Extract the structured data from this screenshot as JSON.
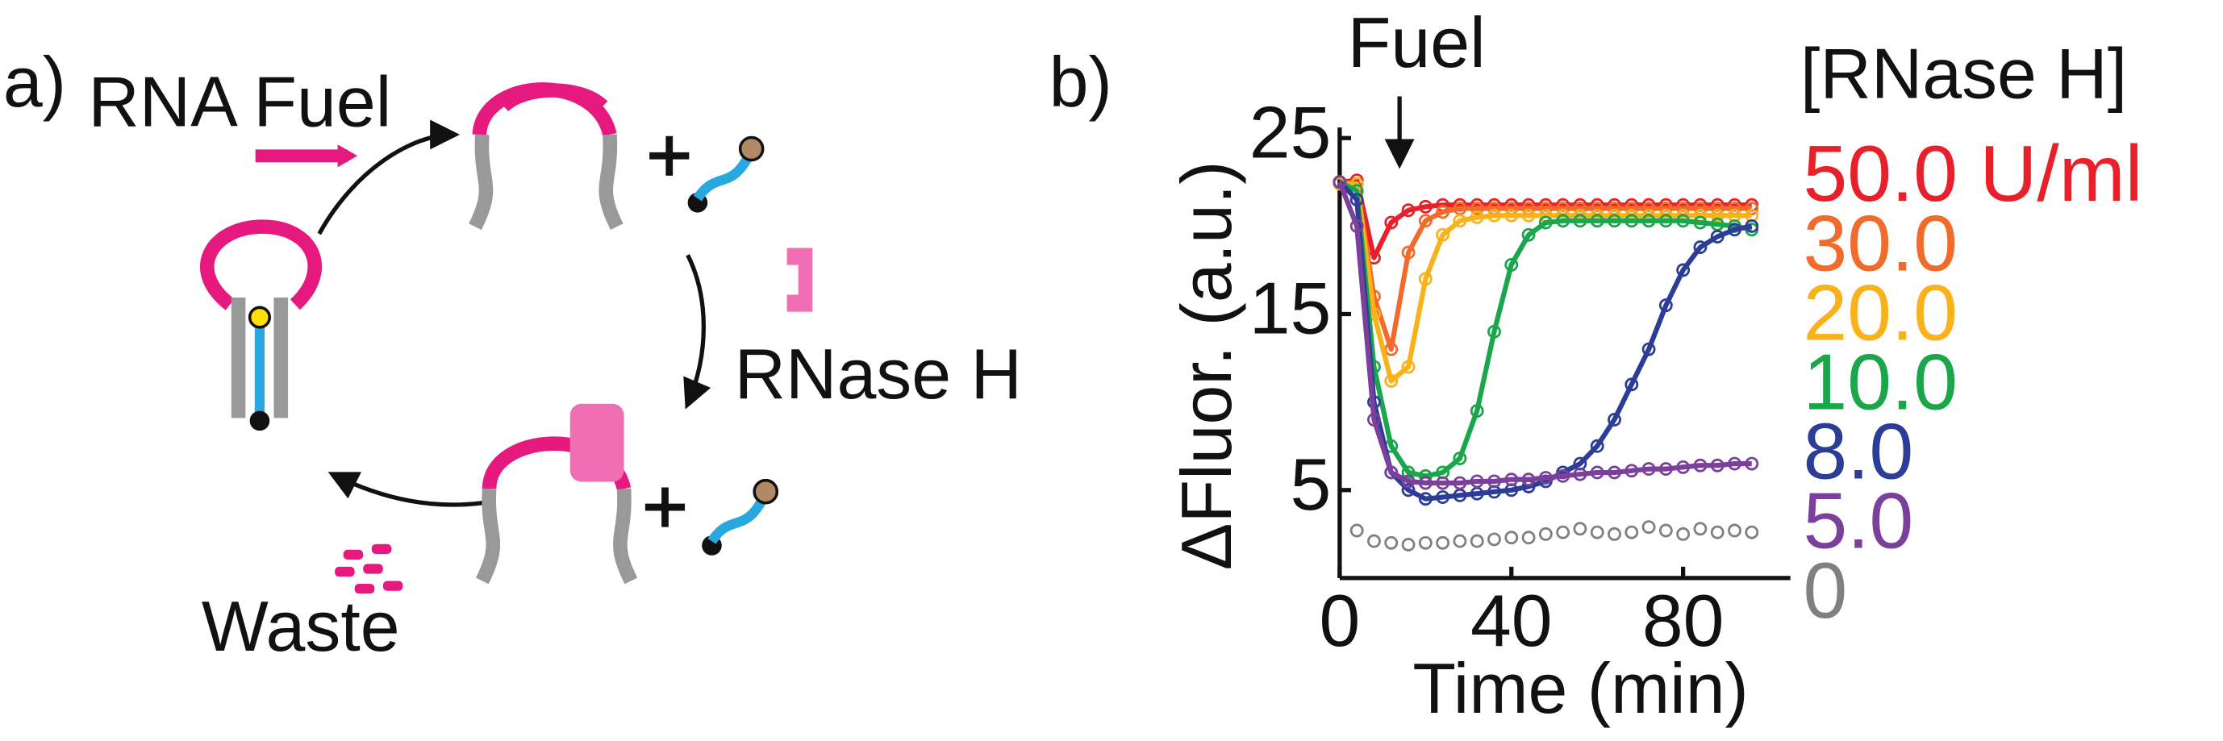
{
  "diagram": {
    "label": "a)",
    "fuel": "RNA Fuel",
    "enzyme": "RNase H",
    "waste": "Waste"
  },
  "chart_data": {
    "type": "line",
    "panel_label": "b)",
    "annotation": "Fuel",
    "annotation_x": 8,
    "xlabel": "Time (min)",
    "ylabel": "ΔFluor. (a.u.)",
    "legend_title": "[RNase H]",
    "xlim": [
      0,
      105
    ],
    "ylim": [
      0,
      25.6
    ],
    "xticks": [
      0,
      40,
      80
    ],
    "yticks": [
      5,
      15,
      25
    ],
    "x": [
      0,
      4,
      8,
      12,
      16,
      20,
      24,
      28,
      32,
      36,
      40,
      44,
      48,
      52,
      56,
      60,
      64,
      68,
      72,
      76,
      80,
      84,
      88,
      92,
      96
    ],
    "series": [
      {
        "name": "50.0 U/ml",
        "color": "#e8202a",
        "fit": true,
        "values": [
          22.5,
          22.6,
          18.2,
          20.2,
          20.9,
          21.1,
          21.2,
          21.2,
          21.2,
          21.2,
          21.2,
          21.2,
          21.2,
          21.2,
          21.2,
          21.2,
          21.2,
          21.2,
          21.2,
          21.2,
          21.2,
          21.2,
          21.2,
          21.2,
          21.2
        ]
      },
      {
        "name": "30.0",
        "color": "#f26b2a",
        "fit": true,
        "values": [
          22.5,
          22.4,
          16.0,
          13.0,
          18.5,
          20.3,
          20.8,
          21.0,
          21.0,
          21.0,
          21.0,
          21.0,
          21.0,
          21.0,
          21.0,
          21.0,
          21.0,
          21.0,
          21.0,
          21.0,
          21.0,
          21.0,
          21.0,
          21.0,
          21.0
        ]
      },
      {
        "name": "20.0",
        "color": "#f9b21a",
        "fit": true,
        "values": [
          22.4,
          22.4,
          15.0,
          11.2,
          12.0,
          17.0,
          19.5,
          20.3,
          20.5,
          20.6,
          20.6,
          20.6,
          20.6,
          20.6,
          20.6,
          20.6,
          20.6,
          20.6,
          20.6,
          20.6,
          20.6,
          20.6,
          20.6,
          20.6,
          20.6
        ]
      },
      {
        "name": "10.0",
        "color": "#1aa64a",
        "fit": true,
        "values": [
          22.5,
          22.0,
          12.0,
          7.5,
          6.0,
          5.8,
          6.0,
          6.8,
          9.5,
          14.0,
          17.8,
          19.5,
          20.2,
          20.3,
          20.3,
          20.3,
          20.3,
          20.3,
          20.3,
          20.3,
          20.3,
          20.2,
          20.1,
          20.0,
          19.8
        ]
      },
      {
        "name": "8.0",
        "color": "#2b3d97",
        "fit": true,
        "values": [
          22.5,
          21.5,
          10.0,
          6.0,
          5.0,
          4.5,
          4.6,
          4.7,
          4.8,
          4.9,
          5.0,
          5.2,
          5.5,
          6.0,
          6.5,
          7.5,
          9.0,
          11.0,
          13.0,
          15.5,
          17.5,
          18.8,
          19.4,
          19.8,
          20.0
        ]
      },
      {
        "name": "5.0",
        "color": "#7b3f9c",
        "fit": true,
        "values": [
          22.5,
          20.0,
          9.0,
          6.0,
          5.5,
          5.4,
          5.4,
          5.4,
          5.5,
          5.5,
          5.6,
          5.6,
          5.7,
          5.8,
          5.9,
          6.0,
          6.0,
          6.1,
          6.2,
          6.2,
          6.3,
          6.4,
          6.4,
          6.5,
          6.5
        ]
      },
      {
        "name": "0",
        "color": "#808080",
        "fit": false,
        "values": [
          null,
          2.7,
          2.1,
          2.0,
          1.9,
          2.0,
          2.0,
          2.1,
          2.1,
          2.2,
          2.3,
          2.3,
          2.5,
          2.6,
          2.8,
          2.6,
          2.5,
          2.6,
          2.9,
          2.7,
          2.5,
          2.8,
          2.6,
          2.7,
          2.6
        ]
      }
    ]
  }
}
